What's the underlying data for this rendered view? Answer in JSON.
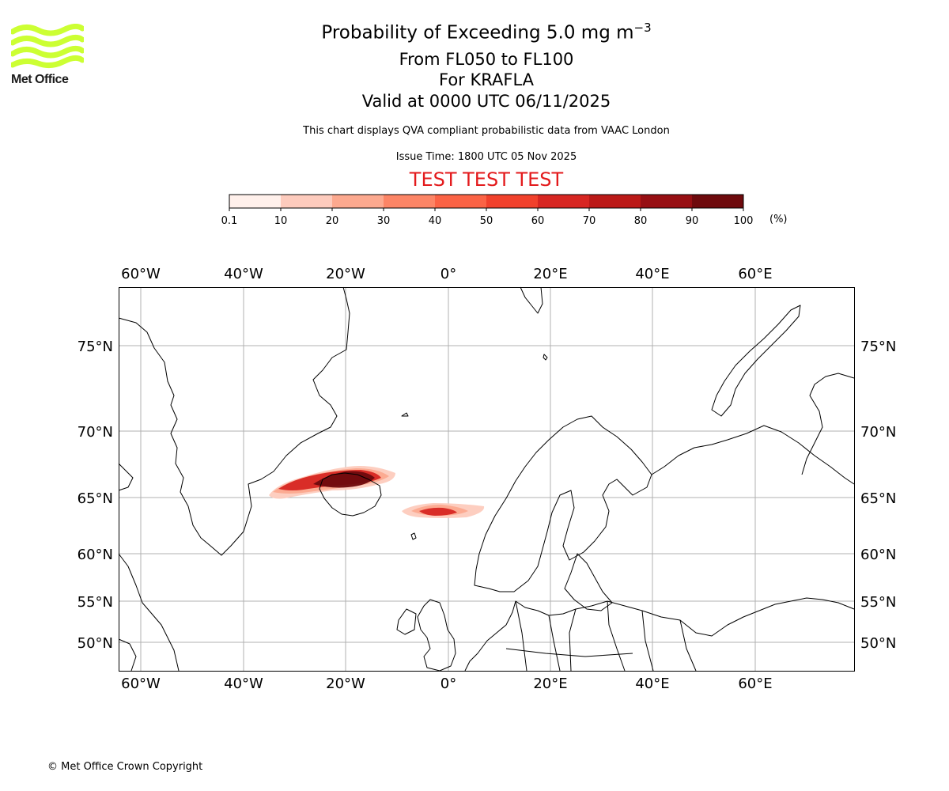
{
  "logo": {
    "name": "Met Office",
    "brand_color": "#ccff33"
  },
  "title": {
    "line1_prefix": "Probability of Exceeding 5.0 mg m",
    "line1_exponent": "−3",
    "line2": "From FL050 to FL100",
    "line3": "For KRAFLA",
    "line4": "Valid at 0000 UTC 06/11/2025"
  },
  "note": "This chart displays QVA compliant probabilistic data from VAAC London",
  "issue_time": "Issue Time: 1800 UTC 05 Nov 2025",
  "test_banner": "TEST TEST TEST",
  "colorbar": {
    "unit": "(%)",
    "ticks": [
      "0.1",
      "10",
      "20",
      "30",
      "40",
      "50",
      "60",
      "70",
      "80",
      "90",
      "100"
    ],
    "colors": [
      "#fff0eb",
      "#fdcbbd",
      "#fca98f",
      "#fc8566",
      "#fb6345",
      "#f1412c",
      "#d72622",
      "#bb1917",
      "#970f13",
      "#6e0a0d"
    ]
  },
  "map": {
    "lon_ticks": [
      "60°W",
      "40°W",
      "20°W",
      "0°",
      "20°E",
      "40°E",
      "60°E"
    ],
    "lat_ticks": [
      "75°N",
      "70°N",
      "65°N",
      "60°N",
      "55°N",
      "50°N"
    ],
    "plume_colors": {
      "core": "#6e0a0d",
      "mid": "#d72622",
      "edge": "#fca98f",
      "fringe": "#fdcbbd"
    }
  },
  "copyright": "© Met Office Crown Copyright"
}
